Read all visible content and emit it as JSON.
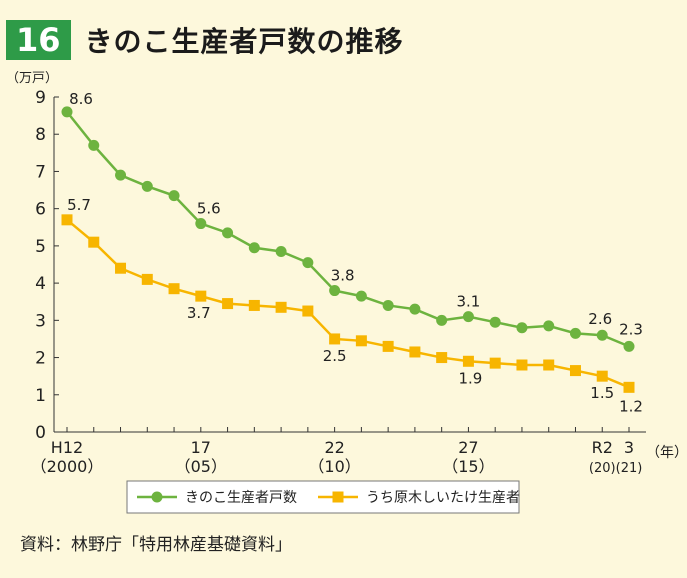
{
  "figure": {
    "number": "16",
    "title": "きのこ生産者戸数の推移",
    "source": "資料：林野庁「特用林産基礎資料」"
  },
  "colors": {
    "background": "#fdf8dc",
    "badge": "#2e9b48",
    "series1": "#6db33f",
    "series2": "#f7b500"
  },
  "chart_data": {
    "type": "line",
    "ylabel": "（万戸）",
    "xlabel": "（年）",
    "ylim": [
      0,
      9
    ],
    "yticks": [
      0,
      1,
      2,
      3,
      4,
      5,
      6,
      7,
      8,
      9
    ],
    "grid": false,
    "legend_position": "bottom-center",
    "x": [
      2000,
      2001,
      2002,
      2003,
      2004,
      2005,
      2006,
      2007,
      2008,
      2009,
      2010,
      2011,
      2012,
      2013,
      2014,
      2015,
      2016,
      2017,
      2018,
      2019,
      2020,
      2021
    ],
    "x_tick_labels": [
      {
        "x": 2000,
        "top": "H12",
        "bottom": "（2000）"
      },
      {
        "x": 2005,
        "top": "17",
        "bottom": "（05）"
      },
      {
        "x": 2010,
        "top": "22",
        "bottom": "（10）"
      },
      {
        "x": 2015,
        "top": "27",
        "bottom": "（15）"
      },
      {
        "x": 2020,
        "top": "R2",
        "bottom": "(20)"
      },
      {
        "x": 2021,
        "top": "3",
        "bottom": "(21)"
      }
    ],
    "series": [
      {
        "name": "きのこ生産者戸数",
        "marker": "circle",
        "color": "#6db33f",
        "values": [
          8.6,
          7.7,
          6.9,
          6.6,
          6.35,
          5.6,
          5.35,
          4.95,
          4.85,
          4.55,
          3.8,
          3.65,
          3.4,
          3.3,
          3.0,
          3.1,
          2.95,
          2.8,
          2.85,
          2.65,
          2.6,
          2.3
        ],
        "labels": [
          {
            "x": 2000,
            "text": "8.6"
          },
          {
            "x": 2005,
            "text": "5.6"
          },
          {
            "x": 2010,
            "text": "3.8"
          },
          {
            "x": 2015,
            "text": "3.1"
          },
          {
            "x": 2020,
            "text": "2.6"
          },
          {
            "x": 2021,
            "text": "2.3"
          }
        ]
      },
      {
        "name": "うち原木しいたけ生産者",
        "marker": "square",
        "color": "#f7b500",
        "values": [
          5.7,
          5.1,
          4.4,
          4.1,
          3.85,
          3.65,
          3.45,
          3.4,
          3.35,
          3.25,
          2.5,
          2.45,
          2.3,
          2.15,
          2.0,
          1.9,
          1.85,
          1.8,
          1.8,
          1.65,
          1.5,
          1.2
        ],
        "labels": [
          {
            "x": 2000,
            "text": "5.7"
          },
          {
            "x": 2005,
            "text": "3.7"
          },
          {
            "x": 2010,
            "text": "2.5"
          },
          {
            "x": 2015,
            "text": "1.9"
          },
          {
            "x": 2020,
            "text": "1.5"
          },
          {
            "x": 2021,
            "text": "1.2"
          }
        ]
      }
    ]
  }
}
